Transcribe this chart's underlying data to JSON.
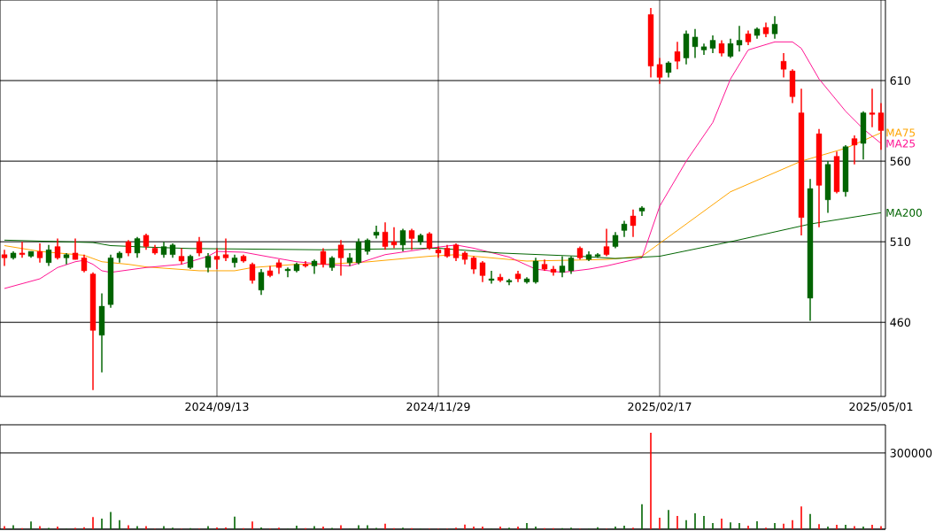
{
  "chart_data": [
    {
      "type": "candlestick",
      "categories": [
        null,
        null,
        null,
        null,
        null,
        null,
        null,
        null,
        null,
        null,
        null,
        null,
        null,
        null,
        null,
        null,
        null,
        null,
        null,
        null,
        null,
        null,
        null,
        null,
        "2024/09/13",
        null,
        null,
        null,
        null,
        null,
        null,
        null,
        null,
        null,
        null,
        null,
        null,
        null,
        null,
        null,
        null,
        null,
        null,
        null,
        null,
        null,
        null,
        null,
        null,
        "2024/11/29",
        null,
        null,
        null,
        null,
        null,
        null,
        null,
        null,
        null,
        null,
        null,
        null,
        null,
        null,
        null,
        null,
        null,
        null,
        null,
        null,
        null,
        null,
        null,
        null,
        "2025/02/17",
        null,
        null,
        null,
        null,
        null,
        null,
        null,
        null,
        null,
        null,
        null,
        null,
        null,
        null,
        null,
        null,
        null,
        null,
        null,
        null,
        null,
        null,
        null,
        null,
        "2025/05/01"
      ],
      "ohlc": [
        [
          502,
          505,
          495,
          500
        ],
        [
          500,
          504,
          499,
          503
        ],
        [
          503,
          510,
          500,
          502
        ],
        [
          501,
          504,
          500,
          504
        ],
        [
          504,
          509,
          497,
          500
        ],
        [
          497,
          508,
          495,
          505
        ],
        [
          507,
          512,
          499,
          500
        ],
        [
          500,
          503,
          496,
          502
        ],
        [
          503,
          512,
          499,
          499
        ],
        [
          500,
          502,
          491,
          492
        ],
        [
          490,
          491,
          418,
          455
        ],
        [
          452,
          478,
          429,
          470
        ],
        [
          471,
          502,
          469,
          500
        ],
        [
          500,
          504,
          497,
          503
        ],
        [
          510,
          511,
          501,
          503
        ],
        [
          503,
          513,
          500,
          512
        ],
        [
          514,
          515,
          505,
          507
        ],
        [
          506,
          508,
          502,
          503
        ],
        [
          502,
          510,
          500,
          507
        ],
        [
          502,
          509,
          500,
          508
        ],
        [
          501,
          506,
          496,
          498
        ],
        [
          494,
          502,
          493,
          501
        ],
        [
          510,
          513,
          501,
          503
        ],
        [
          494,
          503,
          491,
          501
        ],
        [
          501,
          506,
          493,
          499
        ],
        [
          502,
          512,
          498,
          500
        ],
        [
          497,
          502,
          494,
          500
        ],
        [
          501,
          502,
          497,
          498
        ],
        [
          496,
          497,
          484,
          486
        ],
        [
          480,
          493,
          477,
          491
        ],
        [
          492,
          495,
          488,
          489
        ],
        [
          497,
          499,
          490,
          494
        ],
        [
          492,
          494,
          488,
          493
        ],
        [
          492,
          497,
          491,
          496
        ],
        [
          496,
          498,
          494,
          495
        ],
        [
          495,
          499,
          490,
          498
        ],
        [
          504,
          506,
          494,
          496
        ],
        [
          494,
          501,
          492,
          500
        ],
        [
          508,
          511,
          489,
          500
        ],
        [
          497,
          503,
          495,
          500
        ],
        [
          497,
          512,
          496,
          510
        ],
        [
          504,
          512,
          502,
          511
        ],
        [
          514,
          520,
          512,
          516
        ],
        [
          516,
          522,
          505,
          507
        ],
        [
          510,
          519,
          506,
          508
        ],
        [
          508,
          518,
          504,
          517
        ],
        [
          517,
          518,
          505,
          512
        ],
        [
          510,
          515,
          508,
          514
        ],
        [
          515,
          516,
          505,
          506
        ],
        [
          505,
          507,
          500,
          503
        ],
        [
          506,
          508,
          500,
          501
        ],
        [
          508,
          509,
          498,
          500
        ],
        [
          503,
          504,
          496,
          499
        ],
        [
          500,
          501,
          490,
          493
        ],
        [
          497,
          498,
          485,
          489
        ],
        [
          486,
          492,
          484,
          487
        ],
        [
          488,
          490,
          485,
          486
        ],
        [
          485,
          487,
          483,
          486
        ],
        [
          490,
          492,
          485,
          487
        ],
        [
          485,
          488,
          484,
          487
        ],
        [
          485,
          500,
          484,
          498
        ],
        [
          496,
          499,
          492,
          493
        ],
        [
          493,
          495,
          489,
          491
        ],
        [
          491,
          501,
          488,
          495
        ],
        [
          492,
          501,
          490,
          500
        ],
        [
          506,
          507,
          499,
          500
        ],
        [
          499,
          504,
          498,
          502
        ],
        [
          501,
          503,
          500,
          502
        ],
        [
          507,
          518,
          501,
          502
        ],
        [
          507,
          516,
          506,
          514
        ],
        [
          517,
          523,
          513,
          521
        ],
        [
          526,
          530,
          513,
          520
        ],
        [
          529,
          532,
          526,
          531
        ],
        [
          651,
          655,
          612,
          619
        ],
        [
          620,
          624,
          608,
          612
        ],
        [
          615,
          622,
          612,
          621
        ],
        [
          628,
          634,
          617,
          622
        ],
        [
          624,
          641,
          620,
          639
        ],
        [
          631,
          642,
          624,
          637
        ],
        [
          629,
          633,
          626,
          631
        ],
        [
          630,
          638,
          627,
          635
        ],
        [
          633,
          635,
          625,
          627
        ],
        [
          625,
          636,
          624,
          633
        ],
        [
          632,
          644,
          628,
          635
        ],
        [
          639,
          641,
          632,
          634
        ],
        [
          638,
          643,
          636,
          642
        ],
        [
          643,
          646,
          637,
          639
        ],
        [
          639,
          650,
          636,
          645
        ],
        [
          622,
          627,
          612,
          617
        ],
        [
          616,
          617,
          596,
          600
        ],
        [
          590,
          605,
          514,
          525
        ],
        [
          475,
          549,
          461,
          543
        ],
        [
          577,
          580,
          519,
          545
        ],
        [
          536,
          560,
          528,
          558
        ],
        [
          563,
          566,
          540,
          541
        ],
        [
          541,
          570,
          538,
          569
        ],
        [
          574,
          576,
          558,
          570
        ],
        [
          571,
          591,
          561,
          590
        ],
        [
          590,
          605,
          581,
          589
        ],
        [
          590,
          596,
          567,
          579
        ]
      ],
      "colors": [
        "#ff0000",
        "#006400",
        "#ff0000",
        "#006400",
        "#ff0000",
        "#006400",
        "#ff0000",
        "#006400",
        "#ff0000",
        "#ff0000",
        "#ff0000",
        "#006400",
        "#006400",
        "#006400",
        "#ff0000",
        "#006400",
        "#ff0000",
        "#ff0000",
        "#006400",
        "#006400",
        "#ff0000",
        "#006400",
        "#ff0000",
        "#006400",
        "#ff0000",
        "#ff0000",
        "#006400",
        "#ff0000",
        "#ff0000",
        "#006400",
        "#ff0000",
        "#ff0000",
        "#006400",
        "#006400",
        "#ff0000",
        "#006400",
        "#ff0000",
        "#006400",
        "#ff0000",
        "#006400",
        "#006400",
        "#006400",
        "#006400",
        "#ff0000",
        "#ff0000",
        "#006400",
        "#ff0000",
        "#006400",
        "#ff0000",
        "#ff0000",
        "#ff0000",
        "#ff0000",
        "#ff0000",
        "#ff0000",
        "#ff0000",
        "#006400",
        "#ff0000",
        "#006400",
        "#ff0000",
        "#006400",
        "#006400",
        "#ff0000",
        "#ff0000",
        "#006400",
        "#006400",
        "#ff0000",
        "#006400",
        "#006400",
        "#ff0000",
        "#006400",
        "#006400",
        "#ff0000",
        "#006400",
        "#ff0000",
        "#ff0000",
        "#006400",
        "#ff0000",
        "#006400",
        "#006400",
        "#006400",
        "#006400",
        "#ff0000",
        "#006400",
        "#006400",
        "#ff0000",
        "#006400",
        "#ff0000",
        "#006400",
        "#ff0000",
        "#ff0000",
        "#ff0000",
        "#006400",
        "#ff0000",
        "#006400",
        "#ff0000",
        "#006400",
        "#ff0000",
        "#006400",
        "#ff0000",
        "#ff0000"
      ],
      "series": [
        {
          "name": "MA75",
          "type": "line",
          "color": "#ffa500",
          "values": [
            507.6,
            null,
            null,
            null,
            504,
            null,
            null,
            null,
            null,
            501.6,
            null,
            497.6,
            null,
            null,
            496,
            null,
            494.4,
            null,
            null,
            null,
            null,
            null,
            492,
            null,
            null,
            null,
            492,
            null,
            494,
            null,
            null,
            null,
            null,
            496,
            null,
            null,
            496,
            null,
            null,
            null,
            null,
            497.5,
            null,
            null,
            null,
            null,
            null,
            null,
            501,
            null,
            null,
            502,
            null,
            null,
            null,
            500,
            null,
            null,
            null,
            498,
            null,
            null,
            null,
            null,
            null,
            null,
            null,
            null,
            499,
            null,
            null,
            null,
            501,
            null,
            509,
            null,
            null,
            null,
            null,
            null,
            null,
            null,
            541,
            null,
            null,
            null,
            null,
            null,
            null,
            null,
            560,
            null,
            null,
            null,
            null,
            568,
            null,
            null,
            null,
            577.6
          ]
        },
        {
          "name": "MA25",
          "type": "line",
          "color": "#ff1493",
          "values": [
            481,
            null,
            null,
            null,
            487,
            null,
            494,
            null,
            497.6,
            498.5,
            496,
            492,
            491,
            null,
            null,
            null,
            494,
            null,
            null,
            null,
            496,
            null,
            null,
            501,
            504,
            null,
            null,
            503.5,
            null,
            null,
            500.5,
            null,
            null,
            497.6,
            null,
            null,
            496,
            null,
            null,
            495,
            null,
            null,
            null,
            502,
            null,
            null,
            null,
            null,
            506,
            null,
            null,
            508,
            null,
            506,
            null,
            null,
            null,
            500.5,
            null,
            null,
            493,
            null,
            null,
            491,
            null,
            null,
            493,
            null,
            495,
            null,
            null,
            null,
            500,
            null,
            532,
            null,
            null,
            560,
            null,
            null,
            584,
            null,
            611,
            null,
            629,
            null,
            null,
            634,
            null,
            634,
            630,
            null,
            611,
            null,
            null,
            591,
            null,
            580,
            null,
            571
          ]
        },
        {
          "name": "MA200",
          "type": "line",
          "color": "#006400",
          "values": [
            511,
            null,
            null,
            null,
            510.4,
            null,
            null,
            null,
            null,
            null,
            509.5,
            null,
            507.6,
            null,
            null,
            null,
            506.7,
            null,
            null,
            null,
            null,
            505.8,
            null,
            null,
            null,
            null,
            null,
            null,
            null,
            null,
            null,
            null,
            null,
            null,
            null,
            null,
            505,
            null,
            null,
            null,
            null,
            null,
            null,
            null,
            null,
            null,
            null,
            null,
            null,
            506,
            null,
            null,
            null,
            null,
            null,
            null,
            503,
            null,
            null,
            null,
            null,
            null,
            null,
            null,
            null,
            501,
            null,
            null,
            null,
            499.6,
            null,
            null,
            null,
            null,
            501,
            null,
            null,
            null,
            null,
            null,
            null,
            null,
            510,
            null,
            null,
            null,
            null,
            null,
            null,
            null,
            null,
            521,
            null,
            null,
            null,
            null,
            null,
            null,
            null,
            528
          ]
        }
      ],
      "ylim": [
        414,
        660
      ],
      "yticks": [
        460,
        510,
        560,
        610
      ],
      "grid": true
    },
    {
      "type": "bar",
      "categories": [
        null,
        null,
        null,
        null,
        null,
        null,
        null,
        null,
        null,
        null,
        null,
        null,
        null,
        null,
        null,
        null,
        null,
        null,
        null,
        null,
        null,
        null,
        null,
        null,
        "2024/09/13",
        null,
        null,
        null,
        null,
        null,
        null,
        null,
        null,
        null,
        null,
        null,
        null,
        null,
        null,
        null,
        null,
        null,
        null,
        null,
        null,
        null,
        null,
        null,
        null,
        "2024/11/29",
        null,
        null,
        null,
        null,
        null,
        null,
        null,
        null,
        null,
        null,
        null,
        null,
        null,
        null,
        null,
        null,
        null,
        null,
        null,
        null,
        null,
        null,
        null,
        null,
        "2025/02/17",
        null,
        null,
        null,
        null,
        null,
        null,
        null,
        null,
        null,
        null,
        null,
        null,
        null,
        null,
        null,
        null,
        null,
        null,
        null,
        null,
        null,
        null,
        null,
        null,
        "2025/05/01"
      ],
      "values": [
        12000,
        16000,
        4000,
        30000,
        12000,
        5000,
        10000,
        2000,
        5000,
        8000,
        48000,
        42000,
        68000,
        36000,
        16000,
        12000,
        12000,
        2000,
        12000,
        6000,
        2000,
        4000,
        2000,
        12000,
        7000,
        7000,
        50000,
        4000,
        30000,
        7000,
        2000,
        6000,
        2000,
        14000,
        4000,
        12000,
        10000,
        5000,
        16000,
        2000,
        16000,
        16000,
        5000,
        22000,
        4000,
        6000,
        4000,
        2000,
        2000,
        2000,
        2000,
        6000,
        18000,
        10000,
        10000,
        2000,
        10000,
        6000,
        10000,
        24000,
        10000,
        4000,
        4000,
        4000,
        6000,
        2000,
        2000,
        8000,
        2000,
        10000,
        14000,
        6000,
        98000,
        380000,
        45000,
        76000,
        52000,
        36000,
        63000,
        52000,
        24000,
        42000,
        27000,
        24000,
        14000,
        31000,
        6000,
        24000,
        22000,
        36000,
        90000,
        60000,
        20000,
        10000,
        17000,
        17000,
        12000,
        10000,
        17000,
        12000
      ],
      "colors": [
        "#ff0000",
        "#006400",
        "#ff0000",
        "#006400",
        "#ff0000",
        "#006400",
        "#ff0000",
        "#006400",
        "#ff0000",
        "#ff0000",
        "#ff0000",
        "#006400",
        "#006400",
        "#006400",
        "#ff0000",
        "#006400",
        "#ff0000",
        "#ff0000",
        "#006400",
        "#006400",
        "#ff0000",
        "#006400",
        "#ff0000",
        "#006400",
        "#ff0000",
        "#ff0000",
        "#006400",
        "#ff0000",
        "#ff0000",
        "#006400",
        "#ff0000",
        "#ff0000",
        "#006400",
        "#006400",
        "#ff0000",
        "#006400",
        "#ff0000",
        "#006400",
        "#ff0000",
        "#006400",
        "#006400",
        "#006400",
        "#006400",
        "#ff0000",
        "#ff0000",
        "#006400",
        "#ff0000",
        "#006400",
        "#ff0000",
        "#ff0000",
        "#ff0000",
        "#ff0000",
        "#ff0000",
        "#ff0000",
        "#ff0000",
        "#006400",
        "#ff0000",
        "#006400",
        "#ff0000",
        "#006400",
        "#006400",
        "#ff0000",
        "#ff0000",
        "#006400",
        "#006400",
        "#ff0000",
        "#006400",
        "#006400",
        "#ff0000",
        "#006400",
        "#006400",
        "#ff0000",
        "#006400",
        "#ff0000",
        "#ff0000",
        "#006400",
        "#ff0000",
        "#006400",
        "#006400",
        "#006400",
        "#006400",
        "#ff0000",
        "#006400",
        "#006400",
        "#ff0000",
        "#006400",
        "#ff0000",
        "#006400",
        "#ff0000",
        "#ff0000",
        "#ff0000",
        "#006400",
        "#ff0000",
        "#006400",
        "#ff0000",
        "#006400",
        "#ff0000",
        "#006400",
        "#ff0000",
        "#ff0000"
      ],
      "ylim": [
        0,
        411000
      ],
      "yticks": [
        {
          "value": 0,
          "label": null
        },
        300000
      ],
      "grid": "y",
      "tick_labels": "y"
    }
  ]
}
